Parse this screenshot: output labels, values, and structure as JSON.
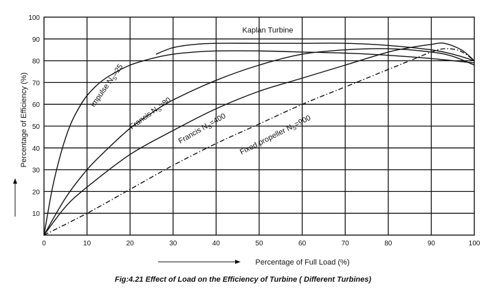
{
  "caption": "Fig:4.21 Effect of Load on the Efficiency of Turbine ( Different Turbines)",
  "colors": {
    "line": "#111111",
    "grid": "#111111",
    "background": "#ffffff"
  },
  "chart_data": {
    "type": "line",
    "title": "",
    "xlabel": "Percentage of Full Load (%)",
    "ylabel": "Percentage of Efficiency (%)",
    "xlim": [
      0,
      100
    ],
    "ylim": [
      0,
      100
    ],
    "x_ticks": [
      "0",
      "10",
      "20",
      "30",
      "40",
      "50",
      "60",
      "70",
      "80",
      "90",
      "100"
    ],
    "y_ticks": [
      "10",
      "20",
      "30",
      "40",
      "50",
      "60",
      "70",
      "80",
      "90",
      "100"
    ],
    "grid": true,
    "legend": "none",
    "series": [
      {
        "name": "Kaplan Turbine",
        "label_parts": {
          "main": "Kaplan Turbine",
          "sub": "",
          "tail": ""
        },
        "style": "solid",
        "x": [
          26,
          30,
          35,
          40,
          50,
          60,
          70,
          80,
          90,
          95,
          100
        ],
        "y": [
          83,
          86,
          87.5,
          88,
          88,
          88,
          88,
          87,
          85,
          83,
          80
        ]
      },
      {
        "name": "Impulse Ns=25",
        "label_parts": {
          "main": "Impulse N",
          "sub": "S",
          "tail": "=25"
        },
        "style": "solid",
        "x": [
          0,
          2,
          4,
          6,
          8,
          10,
          13,
          16,
          20,
          25,
          30,
          35,
          40,
          50,
          60,
          70,
          80,
          90,
          100
        ],
        "y": [
          0,
          22,
          38,
          50,
          58,
          64,
          70,
          74,
          78,
          81,
          83,
          84,
          84.5,
          84.5,
          84,
          83.5,
          82.5,
          81,
          79
        ]
      },
      {
        "name": "Francis Ns=80",
        "label_parts": {
          "main": "Francis N",
          "sub": "S",
          "tail": "=80"
        },
        "style": "solid",
        "x": [
          0,
          5,
          10,
          15,
          20,
          25,
          30,
          40,
          50,
          60,
          70,
          80,
          90,
          95,
          100
        ],
        "y": [
          0,
          17,
          30,
          40,
          49,
          56,
          62,
          71,
          78,
          83,
          85,
          85.5,
          84,
          82,
          78
        ]
      },
      {
        "name": "Francis Ns=400",
        "label_parts": {
          "main": "Francis N",
          "sub": "S",
          "tail": "=400"
        },
        "style": "solid",
        "x": [
          0,
          5,
          10,
          20,
          30,
          40,
          50,
          60,
          70,
          80,
          85,
          90,
          93,
          97,
          100
        ],
        "y": [
          0,
          13,
          22,
          37,
          48,
          58,
          66,
          72,
          78,
          84,
          86,
          87.5,
          88,
          85,
          80
        ]
      },
      {
        "name": "Fixed propeller Ns=900",
        "label_parts": {
          "main": "Fixed propeller N",
          "sub": "S",
          "tail": "=900"
        },
        "style": "dashdot",
        "x": [
          0,
          10,
          20,
          30,
          40,
          50,
          60,
          70,
          80,
          85,
          90,
          93,
          96,
          98,
          100
        ],
        "y": [
          0,
          10,
          21,
          32,
          42,
          51,
          60,
          68,
          76,
          80,
          84,
          85.5,
          85,
          83,
          80
        ]
      }
    ]
  }
}
